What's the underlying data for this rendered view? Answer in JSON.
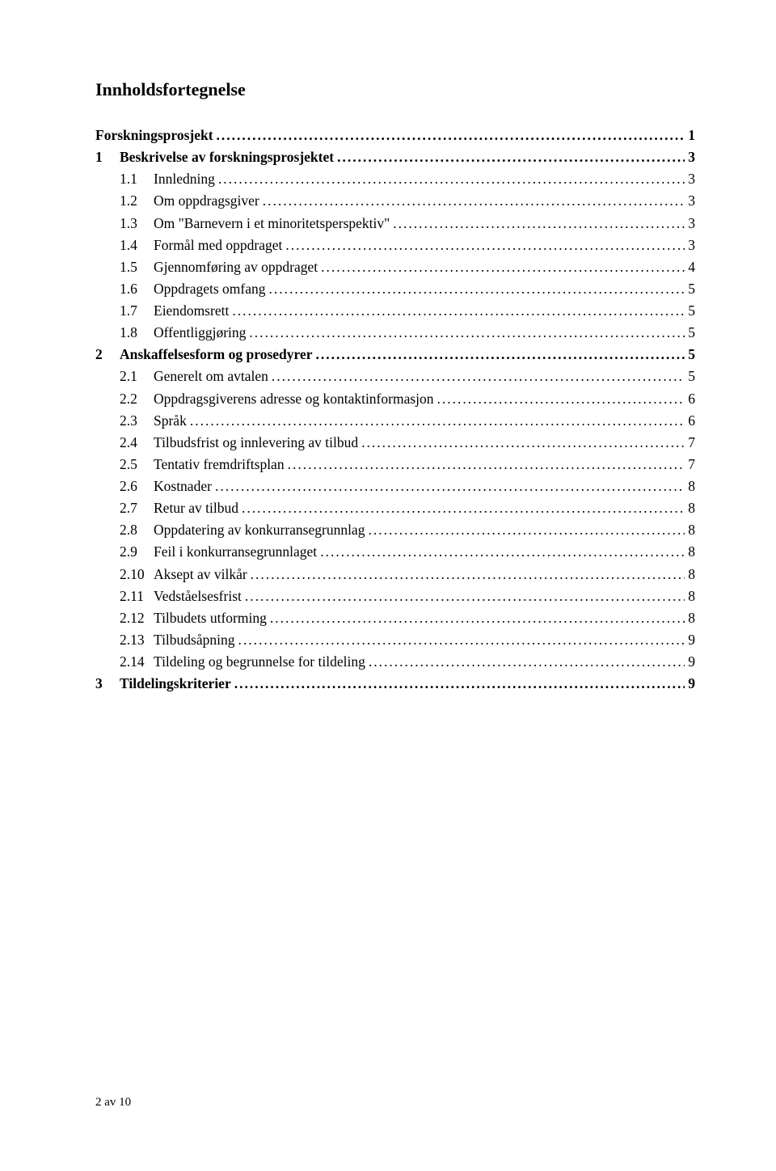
{
  "title": "Innholdsfortegnelse",
  "toc": [
    {
      "indent": 0,
      "num": "",
      "label": "Forskningsprosjekt",
      "page": "1"
    },
    {
      "indent": 1,
      "num": "1",
      "label": "Beskrivelse av forskningsprosjektet",
      "page": "3"
    },
    {
      "indent": 2,
      "num": "1.1",
      "label": "Innledning",
      "page": "3"
    },
    {
      "indent": 2,
      "num": "1.2",
      "label": "Om oppdragsgiver",
      "page": "3"
    },
    {
      "indent": 2,
      "num": "1.3",
      "label": "Om \"Barnevern i et minoritetsperspektiv\"",
      "page": "3"
    },
    {
      "indent": 2,
      "num": "1.4",
      "label": "Formål med oppdraget",
      "page": "3"
    },
    {
      "indent": 2,
      "num": "1.5",
      "label": "Gjennomføring av oppdraget",
      "page": "4"
    },
    {
      "indent": 2,
      "num": "1.6",
      "label": "Oppdragets omfang",
      "page": "5"
    },
    {
      "indent": 2,
      "num": "1.7",
      "label": "Eiendomsrett",
      "page": "5"
    },
    {
      "indent": 2,
      "num": "1.8",
      "label": "Offentliggjøring",
      "page": "5"
    },
    {
      "indent": 1,
      "num": "2",
      "label": "Anskaffelsesform og prosedyrer",
      "page": "5"
    },
    {
      "indent": 2,
      "num": "2.1",
      "label": "Generelt om avtalen",
      "page": "5"
    },
    {
      "indent": 2,
      "num": "2.2",
      "label": "Oppdragsgiverens adresse og kontaktinformasjon",
      "page": "6"
    },
    {
      "indent": 2,
      "num": "2.3",
      "label": "Språk",
      "page": "6"
    },
    {
      "indent": 2,
      "num": "2.4",
      "label": "Tilbudsfrist og innlevering av tilbud",
      "page": "7"
    },
    {
      "indent": 2,
      "num": "2.5",
      "label": "Tentativ fremdriftsplan",
      "page": "7"
    },
    {
      "indent": 2,
      "num": "2.6",
      "label": "Kostnader",
      "page": "8"
    },
    {
      "indent": 2,
      "num": "2.7",
      "label": "Retur av tilbud",
      "page": "8"
    },
    {
      "indent": 2,
      "num": "2.8",
      "label": "Oppdatering av konkurransegrunnlag",
      "page": "8"
    },
    {
      "indent": 2,
      "num": "2.9",
      "label": "Feil i konkurransegrunnlaget",
      "page": "8"
    },
    {
      "indent": 2,
      "num": "2.10",
      "label": "Aksept av vilkår",
      "page": "8"
    },
    {
      "indent": 2,
      "num": "2.11",
      "label": "Vedståelsesfrist",
      "page": "8"
    },
    {
      "indent": 2,
      "num": "2.12",
      "label": "Tilbudets utforming",
      "page": "8"
    },
    {
      "indent": 2,
      "num": "2.13",
      "label": "Tilbudsåpning",
      "page": "9"
    },
    {
      "indent": 2,
      "num": "2.14",
      "label": "Tildeling og begrunnelse for tildeling",
      "page": "9"
    },
    {
      "indent": 1,
      "num": "3",
      "label": "Tildelingskriterier",
      "page": "9"
    }
  ],
  "footer": "2 av 10"
}
